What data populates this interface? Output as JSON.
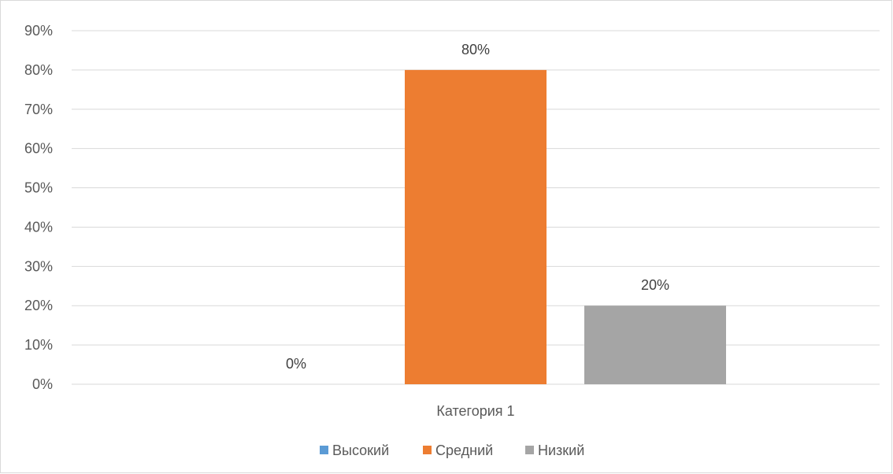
{
  "chart_data": {
    "type": "bar",
    "categories": [
      "Категория 1"
    ],
    "series": [
      {
        "name": "Высокий",
        "values": [
          0
        ],
        "color": "#5B9BD5",
        "label": "0%"
      },
      {
        "name": "Средний",
        "values": [
          80
        ],
        "color": "#ED7D31",
        "label": "80%"
      },
      {
        "name": "Низкий",
        "values": [
          20
        ],
        "color": "#A5A5A5",
        "label": "20%"
      }
    ],
    "ylim": [
      0,
      90
    ],
    "yticks": [
      "0%",
      "10%",
      "20%",
      "30%",
      "40%",
      "50%",
      "60%",
      "70%",
      "80%",
      "90%"
    ],
    "y_unit": "%",
    "grid": true,
    "legend": "bottom"
  }
}
